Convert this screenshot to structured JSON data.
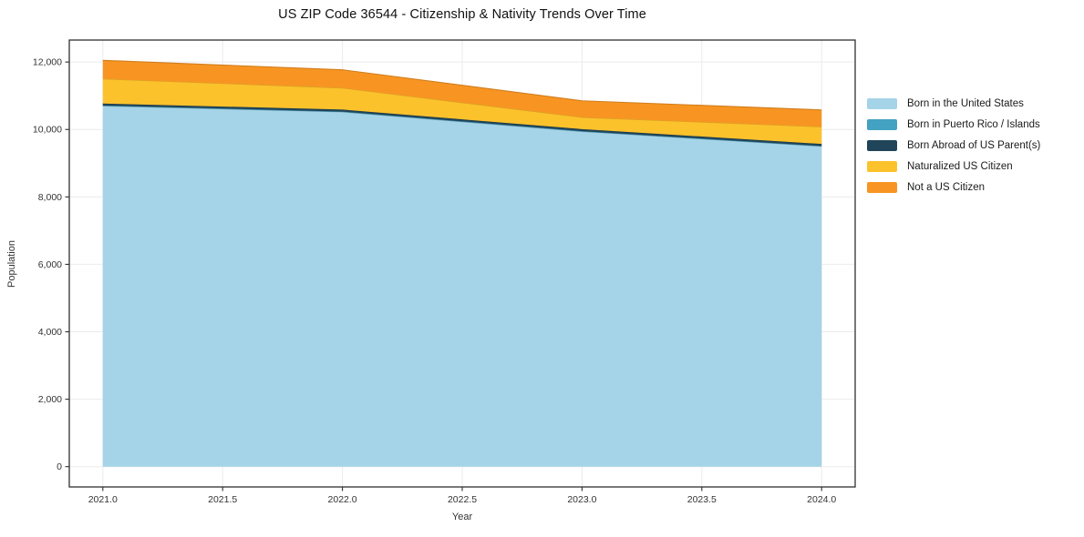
{
  "title": "US ZIP Code 36544 - Citizenship & Nativity Trends Over Time",
  "chart_data": {
    "type": "area",
    "stacked": true,
    "title": "US ZIP Code 36544 - Citizenship & Nativity Trends Over Time",
    "xlabel": "Year",
    "ylabel": "Population",
    "x": [
      2021,
      2022,
      2023,
      2024
    ],
    "series": [
      {
        "name": "Born in the United States",
        "color": "#a5d3e8",
        "values": [
          10700,
          10520,
          9940,
          9500
        ]
      },
      {
        "name": "Born in Puerto Rico / Islands",
        "color": "#43a2c1",
        "values": [
          10,
          10,
          10,
          10
        ]
      },
      {
        "name": "Born Abroad of US Parent(s)",
        "color": "#20455a",
        "values": [
          60,
          60,
          60,
          60
        ]
      },
      {
        "name": "Naturalized US Citizen",
        "color": "#fcc22c",
        "values": [
          730,
          640,
          350,
          510
        ]
      },
      {
        "name": "Not a US Citizen",
        "color": "#f89522",
        "values": [
          550,
          540,
          490,
          500
        ]
      }
    ],
    "totals": [
      12050,
      11770,
      10850,
      10580
    ],
    "x_tick_labels": [
      "2021.0",
      "2021.5",
      "2022.0",
      "2022.5",
      "2023.0",
      "2023.5",
      "2024.0"
    ],
    "x_tick_values": [
      2021,
      2021.5,
      2022,
      2022.5,
      2023,
      2023.5,
      2024
    ],
    "y_tick_labels": [
      "0",
      "2,000",
      "4,000",
      "6,000",
      "8,000",
      "10,000",
      "12,000"
    ],
    "y_tick_values": [
      0,
      2000,
      4000,
      6000,
      8000,
      10000,
      12000
    ],
    "xlim": [
      2020.86,
      2024.14
    ],
    "ylim": [
      -602,
      12652
    ],
    "grid": true,
    "legend_position": "right"
  }
}
